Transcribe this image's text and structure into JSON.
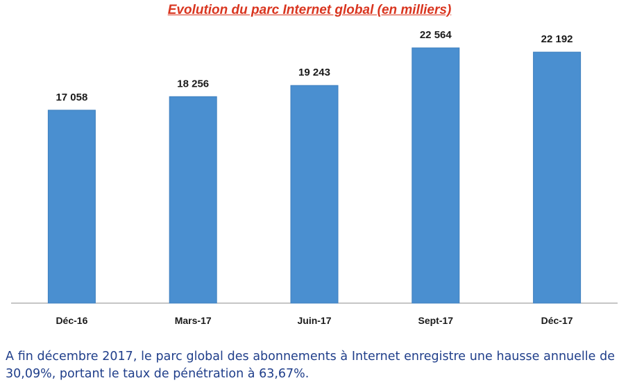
{
  "chart_data": {
    "type": "bar",
    "title": "Evolution du parc Internet global (en milliers)",
    "categories": [
      "Déc-16",
      "Mars-17",
      "Juin-17",
      "Sept-17",
      "Déc-17"
    ],
    "values": [
      17058,
      18256,
      19243,
      22564,
      22192
    ],
    "value_labels": [
      "17 058",
      "18 256",
      "19 243",
      "22 564",
      "22 192"
    ],
    "xlabel": "",
    "ylabel": "",
    "ylim": [
      0,
      22564
    ],
    "grid": false,
    "legend": "none",
    "colors": {
      "bar": "#4a8fd0",
      "title": "#d9351f"
    }
  },
  "caption": "A fin décembre 2017, le parc global des abonnements à Internet enregistre une hausse annuelle de 30,09%, portant le taux de pénétration à 63,67%."
}
